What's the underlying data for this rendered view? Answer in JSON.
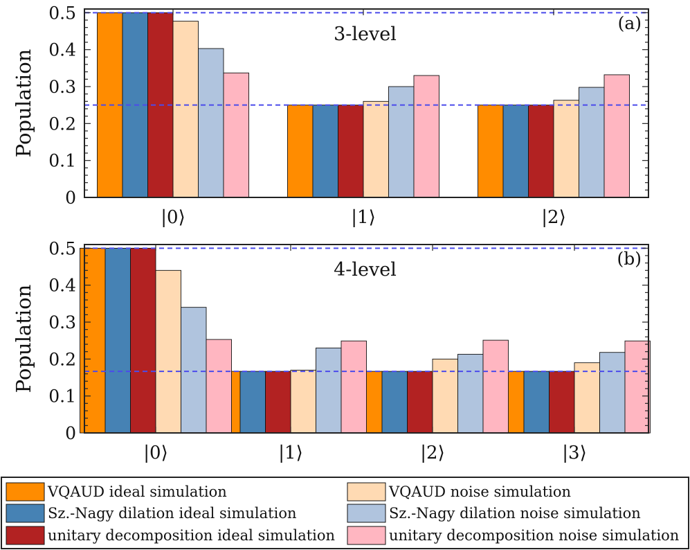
{
  "chart_data": [
    {
      "type": "bar",
      "panel_label": "(a)",
      "title": "3-level",
      "ylabel": "Population",
      "xlabel": "",
      "categories": [
        "|0⟩",
        "|1⟩",
        "|2⟩"
      ],
      "ylim": [
        0,
        0.51
      ],
      "yticks": [
        "0",
        "0.1",
        "0.2",
        "0.3",
        "0.4",
        "0.5"
      ],
      "reference_lines": [
        0.5,
        0.25
      ],
      "series": [
        {
          "name": "VQAUD ideal simulation",
          "values": [
            0.5,
            0.25,
            0.25
          ]
        },
        {
          "name": "Sz.-Nagy dilation ideal simulation",
          "values": [
            0.5,
            0.25,
            0.25
          ]
        },
        {
          "name": "unitary decomposition ideal simulation",
          "values": [
            0.5,
            0.25,
            0.25
          ]
        },
        {
          "name": "VQAUD noise simulation",
          "values": [
            0.477,
            0.26,
            0.263
          ]
        },
        {
          "name": "Sz.-Nagy dilation noise simulation",
          "values": [
            0.403,
            0.3,
            0.298
          ]
        },
        {
          "name": "unitary decomposition noise simulation",
          "values": [
            0.337,
            0.33,
            0.332
          ]
        }
      ]
    },
    {
      "type": "bar",
      "panel_label": "(b)",
      "title": "4-level",
      "ylabel": "Population",
      "xlabel": "",
      "categories": [
        "|0⟩",
        "|1⟩",
        "|2⟩",
        "|3⟩"
      ],
      "ylim": [
        0,
        0.51
      ],
      "yticks": [
        "0",
        "0.1",
        "0.2",
        "0.3",
        "0.4",
        "0.5"
      ],
      "reference_lines": [
        0.5,
        0.1667
      ],
      "series": [
        {
          "name": "VQAUD ideal simulation",
          "values": [
            0.5,
            0.1667,
            0.1667,
            0.1667
          ]
        },
        {
          "name": "Sz.-Nagy dilation ideal simulation",
          "values": [
            0.5,
            0.1667,
            0.1667,
            0.1667
          ]
        },
        {
          "name": "unitary decomposition ideal simulation",
          "values": [
            0.5,
            0.1667,
            0.1667,
            0.1667
          ]
        },
        {
          "name": "VQAUD noise simulation",
          "values": [
            0.44,
            0.17,
            0.2,
            0.19
          ]
        },
        {
          "name": "Sz.-Nagy dilation noise simulation",
          "values": [
            0.34,
            0.23,
            0.213,
            0.218
          ]
        },
        {
          "name": "unitary decomposition noise simulation",
          "values": [
            0.253,
            0.249,
            0.251,
            0.249
          ]
        }
      ]
    }
  ],
  "legend": [
    {
      "label": "VQAUD ideal simulation",
      "color": "#FF8C00"
    },
    {
      "label": "VQAUD noise simulation",
      "color": "#FFDAB3"
    },
    {
      "label": "Sz.-Nagy dilation ideal simulation",
      "color": "#4682B4"
    },
    {
      "label": "Sz.-Nagy dilation noise simulation",
      "color": "#B0C4DE"
    },
    {
      "label": "unitary decomposition ideal simulation",
      "color": "#B22222"
    },
    {
      "label": "unitary decomposition noise simulation",
      "color": "#FFB6C1"
    }
  ],
  "colors": {
    "series": [
      "#FF8C00",
      "#4682B4",
      "#B22222",
      "#FFDAB3",
      "#B0C4DE",
      "#FFB6C1"
    ],
    "reference_line": "#4B4BEB"
  }
}
